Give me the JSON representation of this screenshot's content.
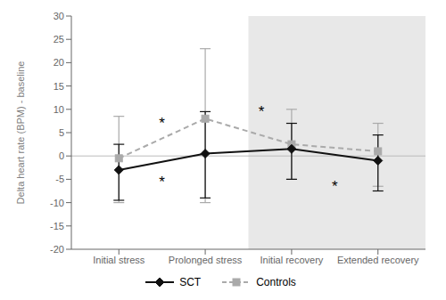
{
  "chart_data": {
    "type": "line",
    "categories": [
      "Initial stress",
      "Prolonged stress",
      "Initial recovery",
      "Extended recovery"
    ],
    "series": [
      {
        "name": "SCT",
        "color": "#111111",
        "marker": "diamond",
        "line_style": "solid",
        "values": [
          -3.0,
          0.5,
          1.5,
          -1.0
        ],
        "yerr_lo": [
          6.5,
          9.5,
          6.5,
          6.5
        ],
        "yerr_hi": [
          5.5,
          9.0,
          5.5,
          5.5
        ]
      },
      {
        "name": "Controls",
        "color": "#aaaaaa",
        "marker": "square",
        "line_style": "dashed",
        "values": [
          -0.5,
          8.0,
          2.5,
          1.0
        ],
        "yerr_lo": [
          9.5,
          18.0,
          7.5,
          7.5
        ],
        "yerr_hi": [
          9.0,
          15.0,
          7.5,
          6.0
        ]
      }
    ],
    "ylabel": "Delta heart rate (BPM) - baseline",
    "ylim": [
      -20,
      30
    ],
    "yticks": [
      -20,
      -15,
      -10,
      -5,
      0,
      5,
      10,
      15,
      20,
      25,
      30
    ],
    "grid": false,
    "reference_line": 0,
    "shaded_region": {
      "x_from": 1.5,
      "color": "#e8e8e8"
    },
    "annotations": [
      {
        "x": 0.5,
        "y": 7.0,
        "text": "*"
      },
      {
        "x": 0.5,
        "y": -5.5,
        "text": "*"
      },
      {
        "x": 1.65,
        "y": 9.5,
        "text": "*"
      },
      {
        "x": 2.5,
        "y": -6.5,
        "text": "*"
      }
    ]
  }
}
